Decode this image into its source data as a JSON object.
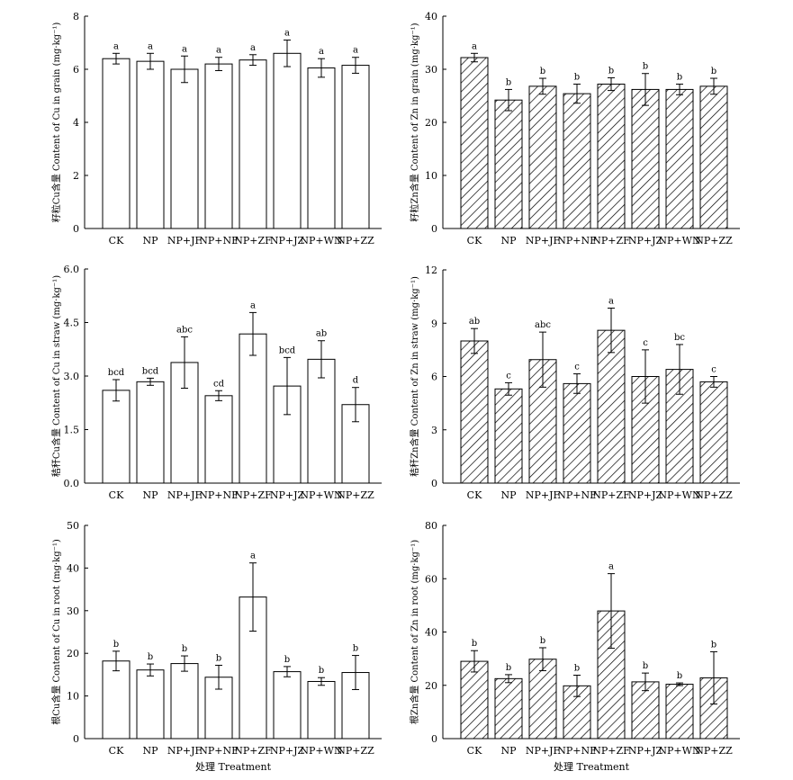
{
  "chart_data": [
    {
      "type": "bar",
      "panel": "top-left",
      "ylabel": "籽粒Cu含量 Content of Cu in grain (mg·kg⁻¹)",
      "xlabel": "",
      "ylim": [
        0,
        8
      ],
      "yticks": [
        "0",
        "2",
        "4",
        "6",
        "8"
      ],
      "categories": [
        "CK",
        "NP",
        "NP+JF",
        "NP+NF",
        "NP+ZF",
        "NP+JZ",
        "NP+WN",
        "NP+ZZ"
      ],
      "values": [
        6.4,
        6.3,
        6.0,
        6.2,
        6.35,
        6.6,
        6.05,
        6.15
      ],
      "errors": [
        0.2,
        0.3,
        0.5,
        0.25,
        0.2,
        0.5,
        0.35,
        0.3
      ],
      "letters": [
        "a",
        "a",
        "a",
        "a",
        "a",
        "a",
        "a",
        "a"
      ],
      "fill": "open"
    },
    {
      "type": "bar",
      "panel": "top-right",
      "ylabel": "籽粒Zn含量 Content of Zn in grain (mg·kg⁻¹)",
      "xlabel": "",
      "ylim": [
        0,
        40
      ],
      "yticks": [
        "0",
        "10",
        "20",
        "30",
        "40"
      ],
      "categories": [
        "CK",
        "NP",
        "NP+JF",
        "NP+NF",
        "NP+ZF",
        "NP+JZ",
        "NP+WN",
        "NP+ZZ"
      ],
      "values": [
        32.2,
        24.2,
        26.8,
        25.4,
        27.2,
        26.2,
        26.2,
        26.8
      ],
      "errors": [
        0.8,
        2.0,
        1.5,
        1.8,
        1.2,
        3.0,
        1.0,
        1.5
      ],
      "letters": [
        "a",
        "b",
        "b",
        "b",
        "b",
        "b",
        "b",
        "b"
      ],
      "fill": "hatch"
    },
    {
      "type": "bar",
      "panel": "middle-left",
      "ylabel": "秸秆Cu含量 Content of Cu in straw (mg·kg⁻¹)",
      "xlabel": "",
      "ylim": [
        0,
        6
      ],
      "yticks": [
        "0.0",
        "1.5",
        "3.0",
        "4.5",
        "6.0"
      ],
      "categories": [
        "CK",
        "NP",
        "NP+JF",
        "NP+NF",
        "NP+ZF",
        "NP+JZ",
        "NP+WN",
        "NP+ZZ"
      ],
      "values": [
        2.6,
        2.84,
        3.38,
        2.45,
        4.18,
        2.72,
        3.47,
        2.2
      ],
      "errors": [
        0.3,
        0.1,
        0.72,
        0.14,
        0.6,
        0.8,
        0.52,
        0.48
      ],
      "letters": [
        "bcd",
        "bcd",
        "abc",
        "cd",
        "a",
        "bcd",
        "ab",
        "d"
      ],
      "fill": "open"
    },
    {
      "type": "bar",
      "panel": "middle-right",
      "ylabel": "秸秆Zn含量 Content of Zn in straw (mg·kg⁻¹)",
      "xlabel": "",
      "ylim": [
        0,
        12
      ],
      "yticks": [
        "0",
        "3",
        "6",
        "9",
        "12"
      ],
      "categories": [
        "CK",
        "NP",
        "NP+JF",
        "NP+NF",
        "NP+ZF",
        "NP+JZ",
        "NP+WN",
        "NP+ZZ"
      ],
      "values": [
        8.0,
        5.3,
        6.95,
        5.6,
        8.6,
        6.0,
        6.4,
        5.7
      ],
      "errors": [
        0.7,
        0.35,
        1.55,
        0.55,
        1.25,
        1.5,
        1.4,
        0.3
      ],
      "letters": [
        "ab",
        "c",
        "abc",
        "c",
        "a",
        "c",
        "bc",
        "c"
      ],
      "fill": "hatch"
    },
    {
      "type": "bar",
      "panel": "bottom-left",
      "ylabel": "根Cu含量 Content of Cu in root (mg·kg⁻¹)",
      "xlabel": "处理 Treatment",
      "ylim": [
        0,
        50
      ],
      "yticks": [
        "0",
        "10",
        "20",
        "30",
        "40",
        "50"
      ],
      "categories": [
        "CK",
        "NP",
        "NP+JF",
        "NP+NF",
        "NP+ZF",
        "NP+JZ",
        "NP+WN",
        "NP+ZZ"
      ],
      "values": [
        18.2,
        16.1,
        17.6,
        14.4,
        33.2,
        15.7,
        13.4,
        15.5
      ],
      "errors": [
        2.3,
        1.4,
        1.8,
        2.8,
        8.0,
        1.2,
        0.9,
        4.0
      ],
      "letters": [
        "b",
        "b",
        "b",
        "b",
        "a",
        "b",
        "b",
        "b"
      ],
      "fill": "open"
    },
    {
      "type": "bar",
      "panel": "bottom-right",
      "ylabel": "根Zn含量 Content of Zn in root (mg·kg⁻¹)",
      "xlabel": "处理 Treatment",
      "ylim": [
        0,
        80
      ],
      "yticks": [
        "0",
        "20",
        "40",
        "60",
        "80"
      ],
      "categories": [
        "CK",
        "NP",
        "NP+JF",
        "NP+NF",
        "NP+ZF",
        "NP+JZ",
        "NP+WN",
        "NP+ZZ"
      ],
      "values": [
        29.0,
        22.5,
        29.8,
        19.8,
        47.9,
        21.3,
        20.4,
        22.8
      ],
      "errors": [
        4.0,
        1.5,
        4.3,
        4.0,
        14.0,
        3.3,
        0.5,
        9.8
      ],
      "letters": [
        "b",
        "b",
        "b",
        "b",
        "a",
        "b",
        "b",
        "b"
      ],
      "fill": "hatch"
    }
  ]
}
